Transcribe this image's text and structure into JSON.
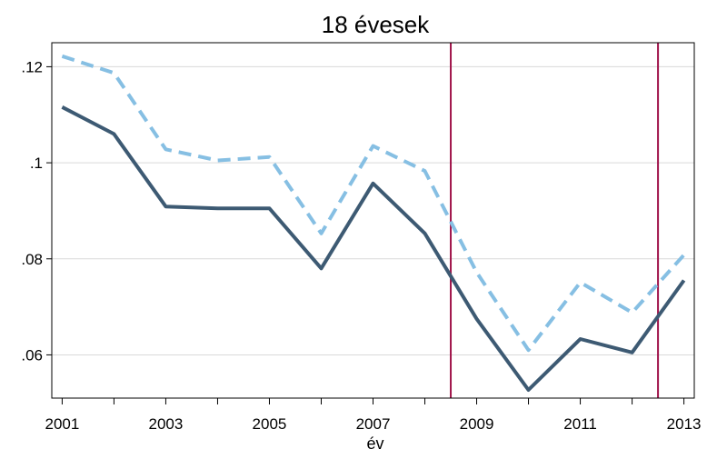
{
  "chart_data": {
    "type": "line",
    "title": "18 évesek",
    "xlabel": "év",
    "ylabel": "",
    "x": [
      2001,
      2002,
      2003,
      2004,
      2005,
      2006,
      2007,
      2008,
      2009,
      2010,
      2011,
      2012,
      2013
    ],
    "xlim": [
      2000.8,
      2013.2
    ],
    "ylim": [
      0.051,
      0.125
    ],
    "x_ticks": [
      2001,
      2003,
      2005,
      2007,
      2009,
      2011,
      2013
    ],
    "x_tick_labels": [
      "2001",
      "2003",
      "2005",
      "2007",
      "2009",
      "2011",
      "2013"
    ],
    "y_ticks": [
      0.06,
      0.08,
      0.1,
      0.12
    ],
    "y_tick_labels": [
      ".06",
      ".08",
      ".1",
      ".12"
    ],
    "grid": true,
    "series": [
      {
        "style": "solid",
        "color": "#3d5a73",
        "values": [
          0.1116,
          0.106,
          0.0909,
          0.0905,
          0.0905,
          0.078,
          0.0957,
          0.0853,
          0.0675,
          0.0527,
          0.0633,
          0.0605,
          0.0755
        ]
      },
      {
        "style": "dashed",
        "color": "#86bfe3",
        "values": [
          0.1222,
          0.1187,
          0.1028,
          0.1005,
          0.1012,
          0.0853,
          0.1035,
          0.0983,
          0.0772,
          0.061,
          0.0751,
          0.0688,
          0.0808
        ]
      }
    ],
    "vertical_lines": [
      {
        "x": 2008.5,
        "color": "#a0144b"
      },
      {
        "x": 2012.5,
        "color": "#a0144b"
      }
    ]
  }
}
